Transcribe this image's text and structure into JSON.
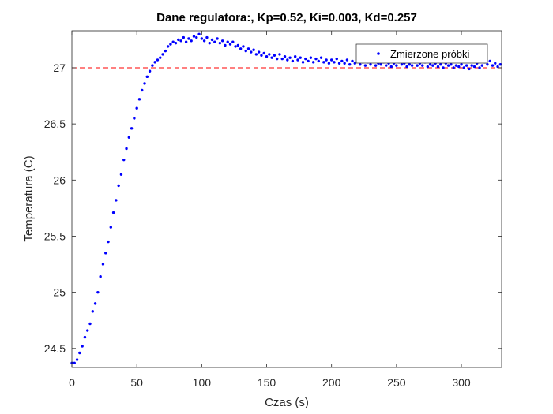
{
  "chart_data": {
    "type": "scatter",
    "title": "Dane regulatora:, Kp=0.52, Ki=0.003, Kd=0.257",
    "xlabel": "Czas (s)",
    "ylabel": "Temperatura (C)",
    "xlim": [
      0,
      331
    ],
    "ylim": [
      24.33,
      27.33
    ],
    "xticks": [
      0,
      50,
      100,
      150,
      200,
      250,
      300
    ],
    "xtick_labels": [
      "0",
      "50",
      "100",
      "150",
      "200",
      "250",
      "300"
    ],
    "yticks": [
      24.5,
      25,
      25.5,
      26,
      26.5,
      27
    ],
    "ytick_labels": [
      "24.5",
      "25",
      "25.5",
      "26",
      "26.5",
      "27"
    ],
    "grid": false,
    "legend_position": "top-right",
    "series": [
      {
        "name": "Zmierzone próbki",
        "color": "#0000ff",
        "marker": "dot",
        "points": [
          [
            0,
            24.37
          ],
          [
            2,
            24.37
          ],
          [
            4,
            24.4
          ],
          [
            6,
            24.46
          ],
          [
            8,
            24.52
          ],
          [
            10,
            24.6
          ],
          [
            12,
            24.66
          ],
          [
            14,
            24.72
          ],
          [
            16,
            24.83
          ],
          [
            18,
            24.9
          ],
          [
            20,
            25.0
          ],
          [
            22,
            25.14
          ],
          [
            24,
            25.25
          ],
          [
            26,
            25.35
          ],
          [
            28,
            25.45
          ],
          [
            30,
            25.58
          ],
          [
            32,
            25.71
          ],
          [
            34,
            25.82
          ],
          [
            36,
            25.95
          ],
          [
            38,
            26.05
          ],
          [
            40,
            26.18
          ],
          [
            42,
            26.28
          ],
          [
            44,
            26.38
          ],
          [
            46,
            26.46
          ],
          [
            48,
            26.55
          ],
          [
            50,
            26.64
          ],
          [
            52,
            26.72
          ],
          [
            54,
            26.8
          ],
          [
            56,
            26.86
          ],
          [
            58,
            26.92
          ],
          [
            60,
            26.97
          ],
          [
            62,
            27.02
          ],
          [
            64,
            27.05
          ],
          [
            66,
            27.07
          ],
          [
            68,
            27.09
          ],
          [
            70,
            27.12
          ],
          [
            72,
            27.15
          ],
          [
            74,
            27.19
          ],
          [
            76,
            27.21
          ],
          [
            78,
            27.23
          ],
          [
            80,
            27.22
          ],
          [
            82,
            27.25
          ],
          [
            84,
            27.24
          ],
          [
            86,
            27.27
          ],
          [
            88,
            27.23
          ],
          [
            90,
            27.26
          ],
          [
            92,
            27.24
          ],
          [
            94,
            27.28
          ],
          [
            96,
            27.27
          ],
          [
            98,
            27.3
          ],
          [
            100,
            27.26
          ],
          [
            102,
            27.24
          ],
          [
            104,
            27.27
          ],
          [
            106,
            27.22
          ],
          [
            108,
            27.25
          ],
          [
            110,
            27.23
          ],
          [
            112,
            27.26
          ],
          [
            114,
            27.22
          ],
          [
            116,
            27.24
          ],
          [
            118,
            27.2
          ],
          [
            120,
            27.23
          ],
          [
            122,
            27.21
          ],
          [
            124,
            27.23
          ],
          [
            126,
            27.19
          ],
          [
            128,
            27.2
          ],
          [
            130,
            27.17
          ],
          [
            132,
            27.19
          ],
          [
            134,
            27.15
          ],
          [
            136,
            27.17
          ],
          [
            138,
            27.14
          ],
          [
            140,
            27.16
          ],
          [
            142,
            27.12
          ],
          [
            144,
            27.14
          ],
          [
            146,
            27.11
          ],
          [
            148,
            27.13
          ],
          [
            150,
            27.1
          ],
          [
            152,
            27.12
          ],
          [
            154,
            27.09
          ],
          [
            156,
            27.11
          ],
          [
            158,
            27.08
          ],
          [
            160,
            27.12
          ],
          [
            162,
            27.08
          ],
          [
            164,
            27.1
          ],
          [
            166,
            27.07
          ],
          [
            168,
            27.09
          ],
          [
            170,
            27.06
          ],
          [
            172,
            27.1
          ],
          [
            174,
            27.07
          ],
          [
            176,
            27.09
          ],
          [
            178,
            27.05
          ],
          [
            180,
            27.08
          ],
          [
            182,
            27.06
          ],
          [
            184,
            27.09
          ],
          [
            186,
            27.05
          ],
          [
            188,
            27.08
          ],
          [
            190,
            27.06
          ],
          [
            192,
            27.09
          ],
          [
            194,
            27.05
          ],
          [
            196,
            27.07
          ],
          [
            198,
            27.04
          ],
          [
            200,
            27.07
          ],
          [
            202,
            27.05
          ],
          [
            204,
            27.08
          ],
          [
            206,
            27.04
          ],
          [
            208,
            27.06
          ],
          [
            210,
            27.04
          ],
          [
            212,
            27.07
          ],
          [
            214,
            27.03
          ],
          [
            216,
            27.06
          ],
          [
            218,
            27.04
          ],
          [
            220,
            27.06
          ],
          [
            222,
            27.03
          ],
          [
            224,
            27.05
          ],
          [
            226,
            27.02
          ],
          [
            228,
            27.05
          ],
          [
            230,
            27.03
          ],
          [
            232,
            27.06
          ],
          [
            234,
            27.02
          ],
          [
            236,
            27.04
          ],
          [
            238,
            27.03
          ],
          [
            240,
            27.05
          ],
          [
            242,
            27.02
          ],
          [
            244,
            27.04
          ],
          [
            246,
            27.01
          ],
          [
            248,
            27.04
          ],
          [
            250,
            27.02
          ],
          [
            252,
            27.05
          ],
          [
            254,
            27.03
          ],
          [
            256,
            27.04
          ],
          [
            258,
            27.01
          ],
          [
            260,
            27.03
          ],
          [
            262,
            27.02
          ],
          [
            264,
            27.05
          ],
          [
            266,
            27.02
          ],
          [
            268,
            27.04
          ],
          [
            270,
            27.02
          ],
          [
            272,
            27.05
          ],
          [
            274,
            27.01
          ],
          [
            276,
            27.03
          ],
          [
            278,
            27.02
          ],
          [
            280,
            27.04
          ],
          [
            282,
            27.01
          ],
          [
            284,
            27.03
          ],
          [
            286,
            27.0
          ],
          [
            288,
            27.04
          ],
          [
            290,
            27.02
          ],
          [
            292,
            27.03
          ],
          [
            294,
            27.0
          ],
          [
            296,
            27.02
          ],
          [
            298,
            27.01
          ],
          [
            300,
            27.03
          ],
          [
            302,
            27.0
          ],
          [
            304,
            27.02
          ],
          [
            306,
            26.99
          ],
          [
            308,
            27.02
          ],
          [
            310,
            27.01
          ],
          [
            312,
            27.04
          ],
          [
            314,
            27.0
          ],
          [
            316,
            27.02
          ],
          [
            318,
            27.05
          ],
          [
            320,
            27.03
          ],
          [
            322,
            27.06
          ],
          [
            324,
            27.02
          ],
          [
            326,
            27.04
          ],
          [
            328,
            27.01
          ],
          [
            330,
            27.03
          ]
        ]
      }
    ],
    "reference_lines": [
      {
        "type": "horizontal",
        "y": 27,
        "color": "#ff0000",
        "style": "dashed"
      }
    ]
  }
}
